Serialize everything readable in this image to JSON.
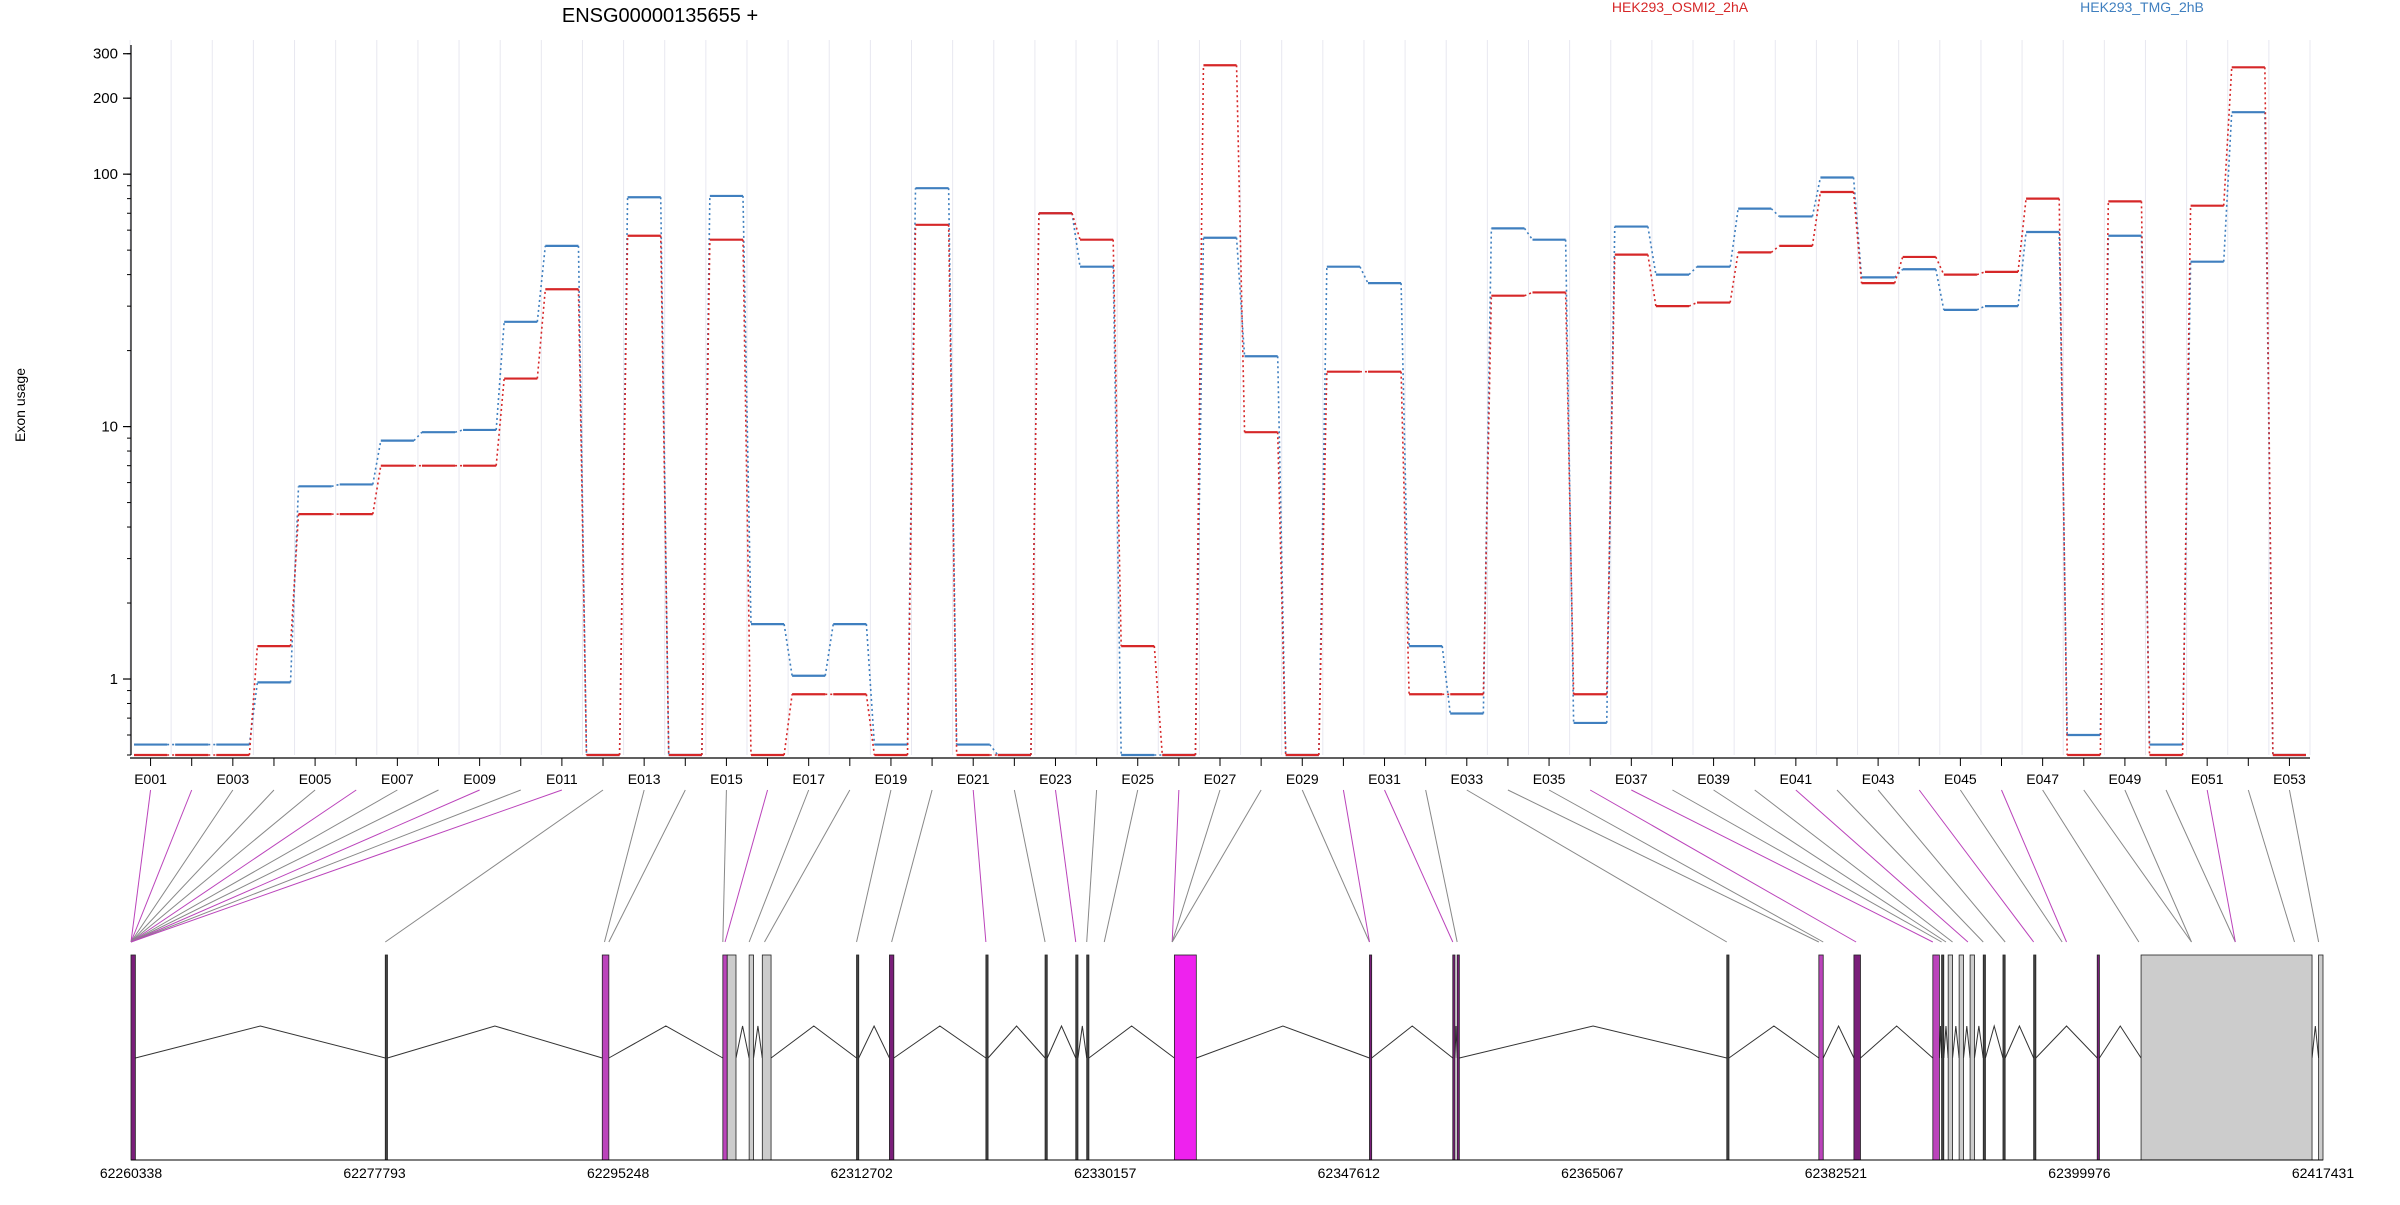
{
  "chart_data": {
    "type": "line",
    "title": "ENSG00000135655 +",
    "ylabel": "Exon usage",
    "y_scale": "log",
    "ylim": [
      0.5,
      340
    ],
    "y_ticks": [
      1,
      10,
      100,
      200,
      300
    ],
    "y_tick_labels": [
      "1",
      "10",
      "100",
      "200",
      "300"
    ],
    "categories": [
      "E001",
      "E002",
      "E003",
      "E004",
      "E005",
      "E006",
      "E007",
      "E008",
      "E009",
      "E010",
      "E011",
      "E012",
      "E013",
      "E014",
      "E015",
      "E016",
      "E017",
      "E018",
      "E019",
      "E020",
      "E021",
      "E022",
      "E023",
      "E024",
      "E025",
      "E026",
      "E027",
      "E028",
      "E029",
      "E030",
      "E031",
      "E032",
      "E033",
      "E034",
      "E035",
      "E036",
      "E037",
      "E038",
      "E039",
      "E040",
      "E041",
      "E042",
      "E043",
      "E044",
      "E045",
      "E046",
      "E047",
      "E048",
      "E049",
      "E050",
      "E051",
      "E052",
      "E053"
    ],
    "x_tick_labels": [
      "E001",
      "E003",
      "E005",
      "E007",
      "E009",
      "E011",
      "E013",
      "E015",
      "E017",
      "E019",
      "E021",
      "E023",
      "E025",
      "E027",
      "E029",
      "E031",
      "E033",
      "E035",
      "E037",
      "E039",
      "E041",
      "E043",
      "E045",
      "E047",
      "E049",
      "E051",
      "E053"
    ],
    "grid": true,
    "series": [
      {
        "name": "HEK293_OSMI2_2hA",
        "color": "#d62728",
        "values": [
          0.5,
          0.5,
          0.5,
          1.35,
          4.5,
          4.5,
          7,
          7,
          7,
          15.5,
          35,
          0.5,
          57,
          0.5,
          55,
          0.5,
          0.87,
          0.87,
          0.5,
          63,
          0.5,
          0.5,
          70,
          55,
          1.35,
          0.5,
          270,
          9.5,
          0.5,
          16.5,
          16.5,
          0.87,
          0.87,
          33,
          34,
          0.87,
          48,
          30,
          31,
          49,
          52,
          85,
          37,
          47,
          40,
          41,
          80,
          0.5,
          78,
          0.5,
          75,
          265,
          0.5
        ]
      },
      {
        "name": "HEK293_TMG_2hB",
        "color": "#3f7fbf",
        "values": [
          0.55,
          0.55,
          0.55,
          0.97,
          5.8,
          5.9,
          8.8,
          9.5,
          9.7,
          26,
          52,
          0.5,
          81,
          0.5,
          82,
          1.65,
          1.03,
          1.65,
          0.55,
          88,
          0.55,
          0.5,
          70,
          43,
          0.5,
          0.5,
          56,
          19,
          0.5,
          43,
          37,
          1.35,
          0.73,
          61,
          55,
          0.67,
          62,
          40,
          43,
          73,
          68,
          97,
          39,
          42,
          29,
          30,
          59,
          0.6,
          57,
          0.55,
          45,
          176,
          0.5
        ]
      }
    ],
    "gene_model": {
      "coordinate_labels": [
        "62260338",
        "62277793",
        "62295248",
        "62312702",
        "62330157",
        "62347612",
        "62365067",
        "62382521",
        "62399976",
        "62417431"
      ],
      "highlight_color": "#ee22ee",
      "plain_color": "#cccccc"
    }
  }
}
